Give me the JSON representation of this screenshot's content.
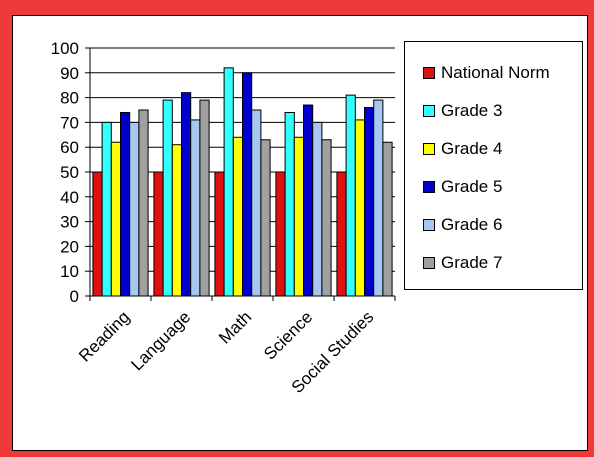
{
  "chart_data": {
    "type": "bar",
    "categories": [
      "Reading",
      "Language",
      "Math",
      "Science",
      "Social Studies"
    ],
    "series": [
      {
        "name": "National Norm",
        "color": "#e01010",
        "values": [
          50,
          50,
          50,
          50,
          50
        ]
      },
      {
        "name": "Grade 3",
        "color": "#33ffff",
        "values": [
          70,
          79,
          92,
          74,
          81
        ]
      },
      {
        "name": "Grade 4",
        "color": "#ffff00",
        "values": [
          62,
          61,
          64,
          64,
          71
        ]
      },
      {
        "name": "Grade 5",
        "color": "#0000cc",
        "values": [
          74,
          82,
          90,
          77,
          76
        ]
      },
      {
        "name": "Grade 6",
        "color": "#a6c8f0",
        "values": [
          70,
          71,
          75,
          70,
          79
        ]
      },
      {
        "name": "Grade 7",
        "color": "#a0a0a0",
        "values": [
          75,
          79,
          63,
          63,
          62
        ]
      }
    ],
    "ylim": [
      0,
      100
    ],
    "y_ticks": [
      0,
      10,
      20,
      30,
      40,
      50,
      60,
      70,
      80,
      90,
      100
    ],
    "grid": true,
    "legend_position": "right",
    "title": "",
    "xlabel": "",
    "ylabel": ""
  }
}
